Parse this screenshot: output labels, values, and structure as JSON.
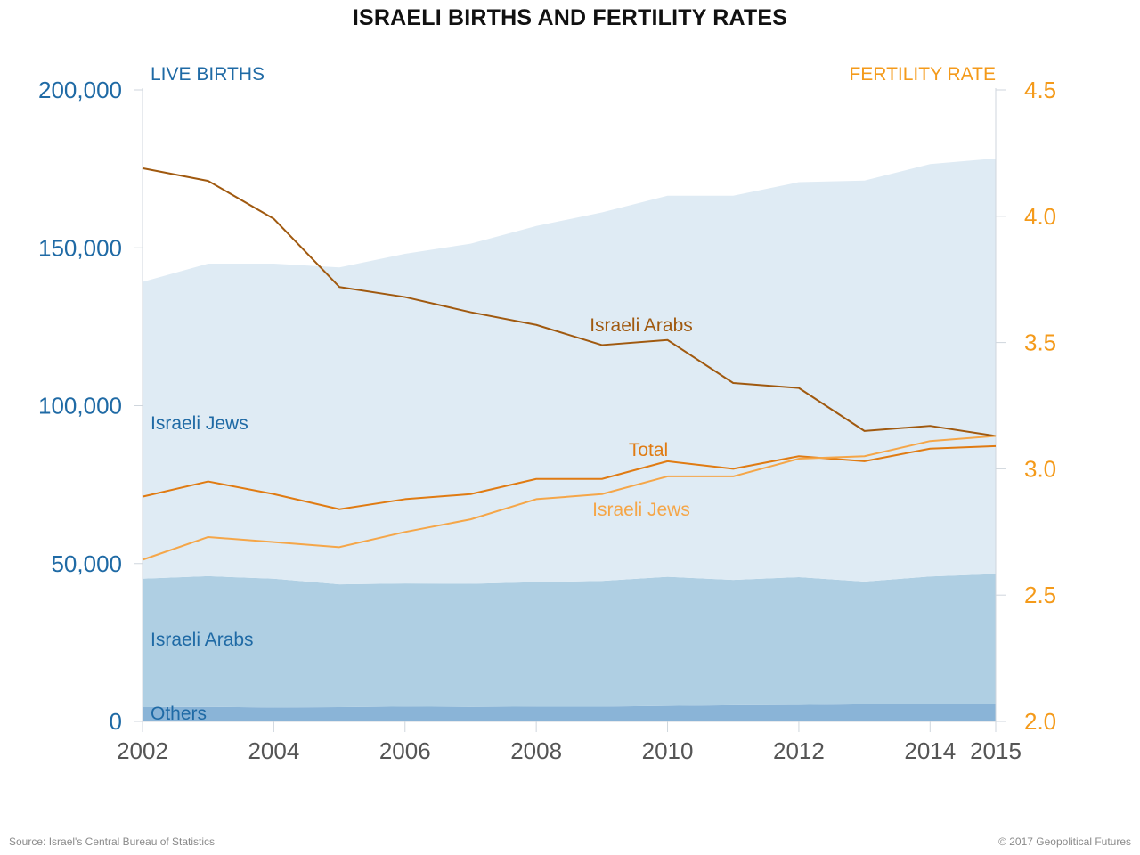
{
  "chart_data": {
    "type": "area",
    "title": "ISRAELI BIRTHS AND FERTILITY RATES",
    "left_axis_label": "LIVE BIRTHS",
    "right_axis_label": "FERTILITY RATE",
    "x": [
      2002,
      2003,
      2004,
      2005,
      2006,
      2007,
      2008,
      2009,
      2010,
      2011,
      2012,
      2013,
      2014,
      2015
    ],
    "x_ticks": [
      "2002",
      "2004",
      "2006",
      "2008",
      "2010",
      "2012",
      "2014",
      "2015"
    ],
    "left_ylim": [
      0,
      200000
    ],
    "left_ticks": [
      "0",
      "50,000",
      "100,000",
      "150,000",
      "200,000"
    ],
    "right_ylim": [
      2.0,
      4.5
    ],
    "right_ticks": [
      "2.0",
      "2.5",
      "3.0",
      "3.5",
      "4.0",
      "4.5"
    ],
    "area_series": [
      {
        "name": "Others",
        "color": "#8ab4d7",
        "values": [
          4500,
          4600,
          4400,
          4500,
          4700,
          4600,
          4700,
          4700,
          4900,
          5100,
          5200,
          5400,
          5600,
          5600
        ]
      },
      {
        "name": "Israeli Arabs",
        "color": "#afcfe3",
        "values": [
          40700,
          41400,
          40800,
          38900,
          39000,
          39000,
          39400,
          39800,
          40900,
          39700,
          40500,
          38900,
          40300,
          41100
        ]
      },
      {
        "name": "Israeli Jews",
        "color": "#dfebf4",
        "values": [
          94000,
          99000,
          99800,
          100400,
          104400,
          107700,
          112800,
          116700,
          120700,
          121700,
          125100,
          127000,
          130600,
          131600
        ]
      }
    ],
    "line_series": [
      {
        "name": "Israeli Arabs",
        "color": "#a0590f",
        "values": [
          4.19,
          4.14,
          3.99,
          3.72,
          3.68,
          3.62,
          3.57,
          3.49,
          3.51,
          3.34,
          3.32,
          3.15,
          3.17,
          3.13
        ]
      },
      {
        "name": "Total",
        "color": "#e07b12",
        "values": [
          2.89,
          2.95,
          2.9,
          2.84,
          2.88,
          2.9,
          2.96,
          2.96,
          3.03,
          3.0,
          3.05,
          3.03,
          3.08,
          3.09
        ]
      },
      {
        "name": "Israeli Jews",
        "color": "#f5a648",
        "values": [
          2.64,
          2.73,
          2.71,
          2.69,
          2.75,
          2.8,
          2.88,
          2.9,
          2.97,
          2.97,
          3.04,
          3.05,
          3.11,
          3.13
        ]
      }
    ],
    "left_axis_color": "#1f6aa5",
    "right_axis_color": "#f49a1a"
  },
  "footer": {
    "source": "Source: Israel's Central Bureau of Statistics",
    "copyright": "© 2017 Geopolitical Futures"
  }
}
